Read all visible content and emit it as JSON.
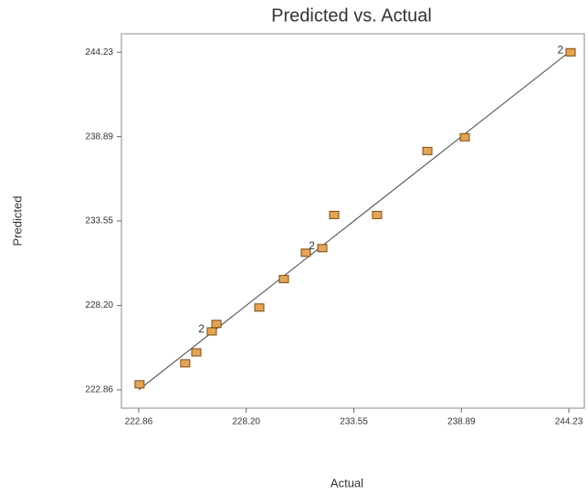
{
  "chart_data": {
    "type": "scatter",
    "title": "Predicted vs. Actual",
    "x_label": "Actual",
    "y_label": "Predicted",
    "series": [
      {
        "name": "Predicted",
        "color": "#e3a458",
        "x": [
          222.9,
          225.17,
          225.72,
          226.49,
          226.72,
          228.85,
          230.07,
          231.16,
          231.98,
          232.57,
          234.7,
          237.2,
          239.06,
          244.32
        ],
        "values": [
          223.21,
          224.54,
          225.23,
          226.56,
          227.03,
          228.07,
          229.87,
          231.54,
          231.83,
          233.93,
          233.93,
          237.98,
          238.85,
          244.23
        ]
      }
    ],
    "point_labels": [
      null,
      null,
      null,
      "2",
      null,
      null,
      null,
      null,
      "2",
      null,
      null,
      null,
      null,
      "2"
    ],
    "xlim": [
      222.0,
      245.0
    ],
    "ylim": [
      221.7,
      245.4
    ],
    "xticks": [
      222.86,
      {
        "value": 228.2,
        "label": "228.20"
      },
      233.55,
      238.89,
      244.23
    ],
    "yticks": [
      222.86,
      {
        "value": 228.2,
        "label": "228.20"
      },
      233.55,
      238.89,
      244.23
    ],
    "diagonal": true
  }
}
